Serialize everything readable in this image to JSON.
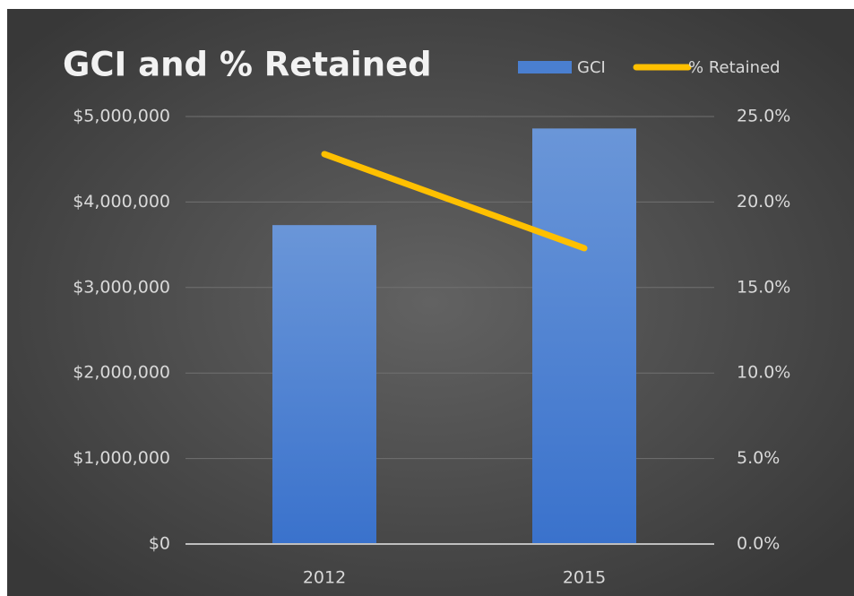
{
  "chart_data": {
    "type": "bar",
    "title": "GCI and % Retained",
    "categories": [
      "2012",
      "2015"
    ],
    "series": [
      {
        "name": "GCI",
        "type": "bar",
        "color": "#4a7fd0",
        "values": [
          3730000,
          4860000
        ]
      },
      {
        "name": "% Retained",
        "type": "line",
        "axis": "y2",
        "color": "#ffc000",
        "values": [
          22.8,
          17.3
        ]
      }
    ],
    "ylim": [
      0,
      5000000
    ],
    "yticks": [
      {
        "value": 0,
        "label": "$0"
      },
      {
        "value": 1000000,
        "label": "$1,000,000"
      },
      {
        "value": 2000000,
        "label": "$2,000,000"
      },
      {
        "value": 3000000,
        "label": "$3,000,000"
      },
      {
        "value": 4000000,
        "label": "$4,000,000"
      },
      {
        "value": 5000000,
        "label": "$5,000,000"
      }
    ],
    "y2lim": [
      0,
      25
    ],
    "y2ticks": [
      {
        "value": 0,
        "label": "0.0%"
      },
      {
        "value": 5,
        "label": "5.0%"
      },
      {
        "value": 10,
        "label": "10.0%"
      },
      {
        "value": 15,
        "label": "15.0%"
      },
      {
        "value": 20,
        "label": "20.0%"
      },
      {
        "value": 25,
        "label": "25.0%"
      }
    ],
    "grid": true,
    "legend": "top-right"
  }
}
